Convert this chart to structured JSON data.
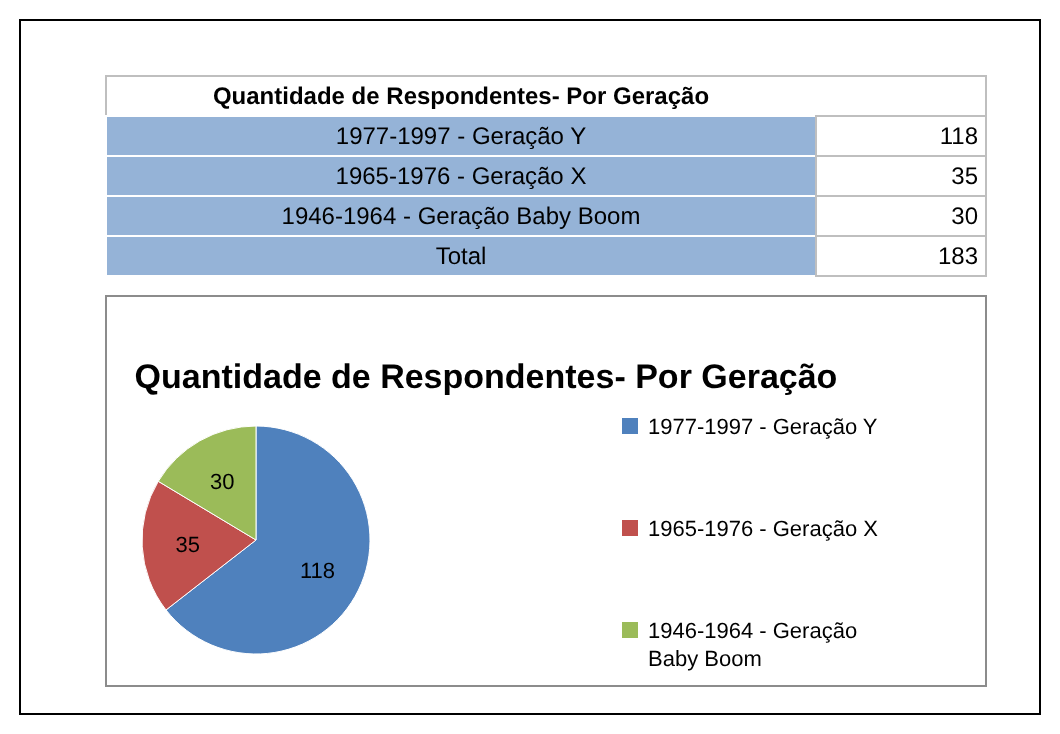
{
  "chart_data": [
    {
      "type": "other",
      "title": "Quantidade de Respondentes- Por Geração",
      "categories": [
        "1977-1997 - Geração Y",
        "1965-1976 - Geração X",
        "1946-1964 - Geração Baby Boom",
        "Total"
      ],
      "values": [
        118,
        35,
        30,
        183
      ],
      "data_labels": true
    },
    {
      "type": "pie",
      "title": "Quantidade de Respondentes- Por Geração",
      "categories": [
        "1977-1997 - Geração Y",
        "1965-1976 - Geração X",
        "1946-1964 - Geração Baby Boom"
      ],
      "values": [
        118,
        35,
        30
      ],
      "colors": [
        "#4f81bd",
        "#c0504d",
        "#9bbb59"
      ],
      "data_labels": true,
      "legend": "right"
    }
  ]
}
